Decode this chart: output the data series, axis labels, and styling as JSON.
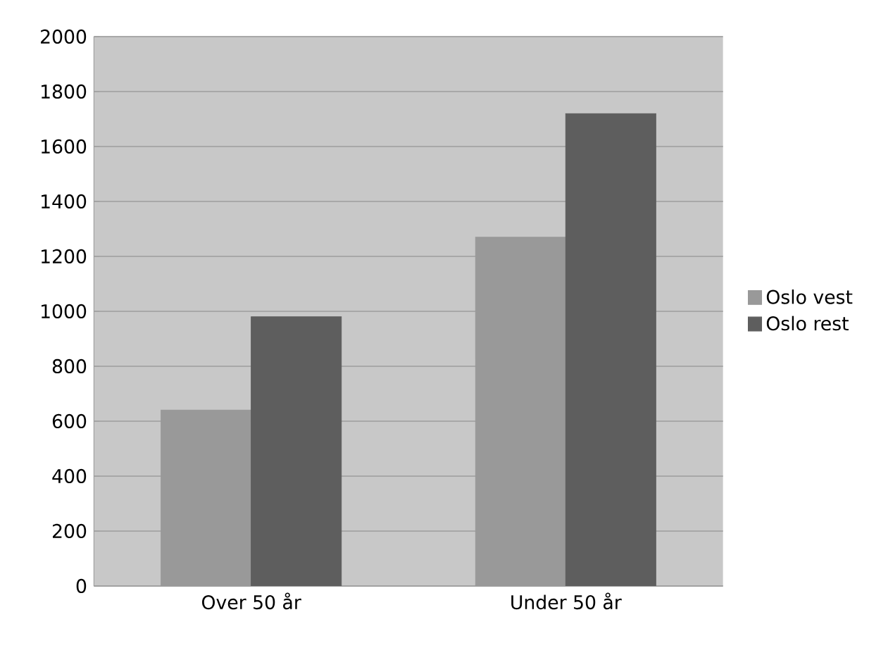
{
  "chart_data": {
    "type": "bar",
    "categories": [
      "Over 50 år",
      "Under 50 år"
    ],
    "series": [
      {
        "name": "Oslo vest",
        "color": "#999999",
        "values": [
          640,
          1270
        ]
      },
      {
        "name": "Oslo rest",
        "color": "#5e5e5e",
        "values": [
          980,
          1720
        ]
      }
    ],
    "ylim": [
      0,
      2000
    ],
    "yticks": [
      0,
      200,
      400,
      600,
      800,
      1000,
      1200,
      1400,
      1600,
      1800,
      2000
    ],
    "grid": "y",
    "legend": "right"
  }
}
